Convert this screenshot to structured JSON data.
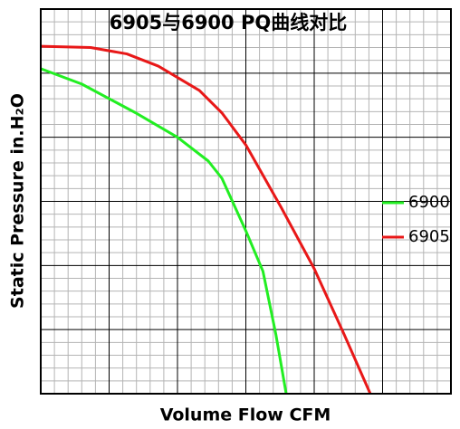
{
  "chart_data": {
    "type": "line",
    "title": "6905与6900 PQ曲线对比",
    "x_label": "Volume Flow   CFM",
    "y_label": "Static Pressure   in.H₂O",
    "xlim": [
      0,
      6
    ],
    "ylim": [
      0,
      6
    ],
    "grid": true,
    "legend_position": "right",
    "series": [
      {
        "name": "6900",
        "color": "#22ee22",
        "x": [
          0,
          0.6,
          1.39,
          2,
          2.45,
          2.65,
          3,
          3.25,
          3.44,
          3.59
        ],
        "values": [
          5.07,
          4.83,
          4.38,
          4.0,
          3.63,
          3.36,
          2.54,
          1.91,
          0.92,
          0
        ]
      },
      {
        "name": "6905",
        "color": "#e81818",
        "x": [
          0,
          0.73,
          1.26,
          1.72,
          2.32,
          2.65,
          3,
          3.52,
          4,
          4.44,
          4.82
        ],
        "values": [
          5.42,
          5.4,
          5.3,
          5.11,
          4.73,
          4.38,
          3.88,
          2.9,
          1.95,
          0.92,
          0
        ]
      }
    ]
  }
}
